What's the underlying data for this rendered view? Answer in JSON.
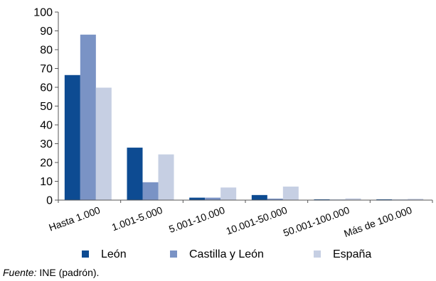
{
  "chart_data": {
    "type": "bar",
    "categories": [
      "Hasta 1.000",
      "1.001-5.000",
      "5.001-10.000",
      "10.001-50.000",
      "50.001-100.000",
      "Más de 100.000"
    ],
    "series": [
      {
        "name": "León",
        "color": "#0d4b92",
        "values": [
          66.5,
          27.9,
          1.3,
          2.7,
          0.4,
          0.4
        ]
      },
      {
        "name": "Castilla y León",
        "color": "#7a93c5",
        "values": [
          88.0,
          9.5,
          1.3,
          0.8,
          0.2,
          0.2
        ]
      },
      {
        "name": "España",
        "color": "#c6cfe3",
        "values": [
          59.8,
          24.3,
          6.7,
          7.2,
          0.9,
          0.7
        ]
      }
    ],
    "ylim": [
      0,
      100
    ],
    "yticks": [
      0,
      10,
      20,
      30,
      40,
      50,
      60,
      70,
      80,
      90,
      100
    ],
    "title": "",
    "xlabel": "",
    "ylabel": "",
    "grid": false,
    "legend_position": "bottom"
  },
  "source": {
    "label": "Fuente:",
    "text": " INE (padrón)."
  }
}
